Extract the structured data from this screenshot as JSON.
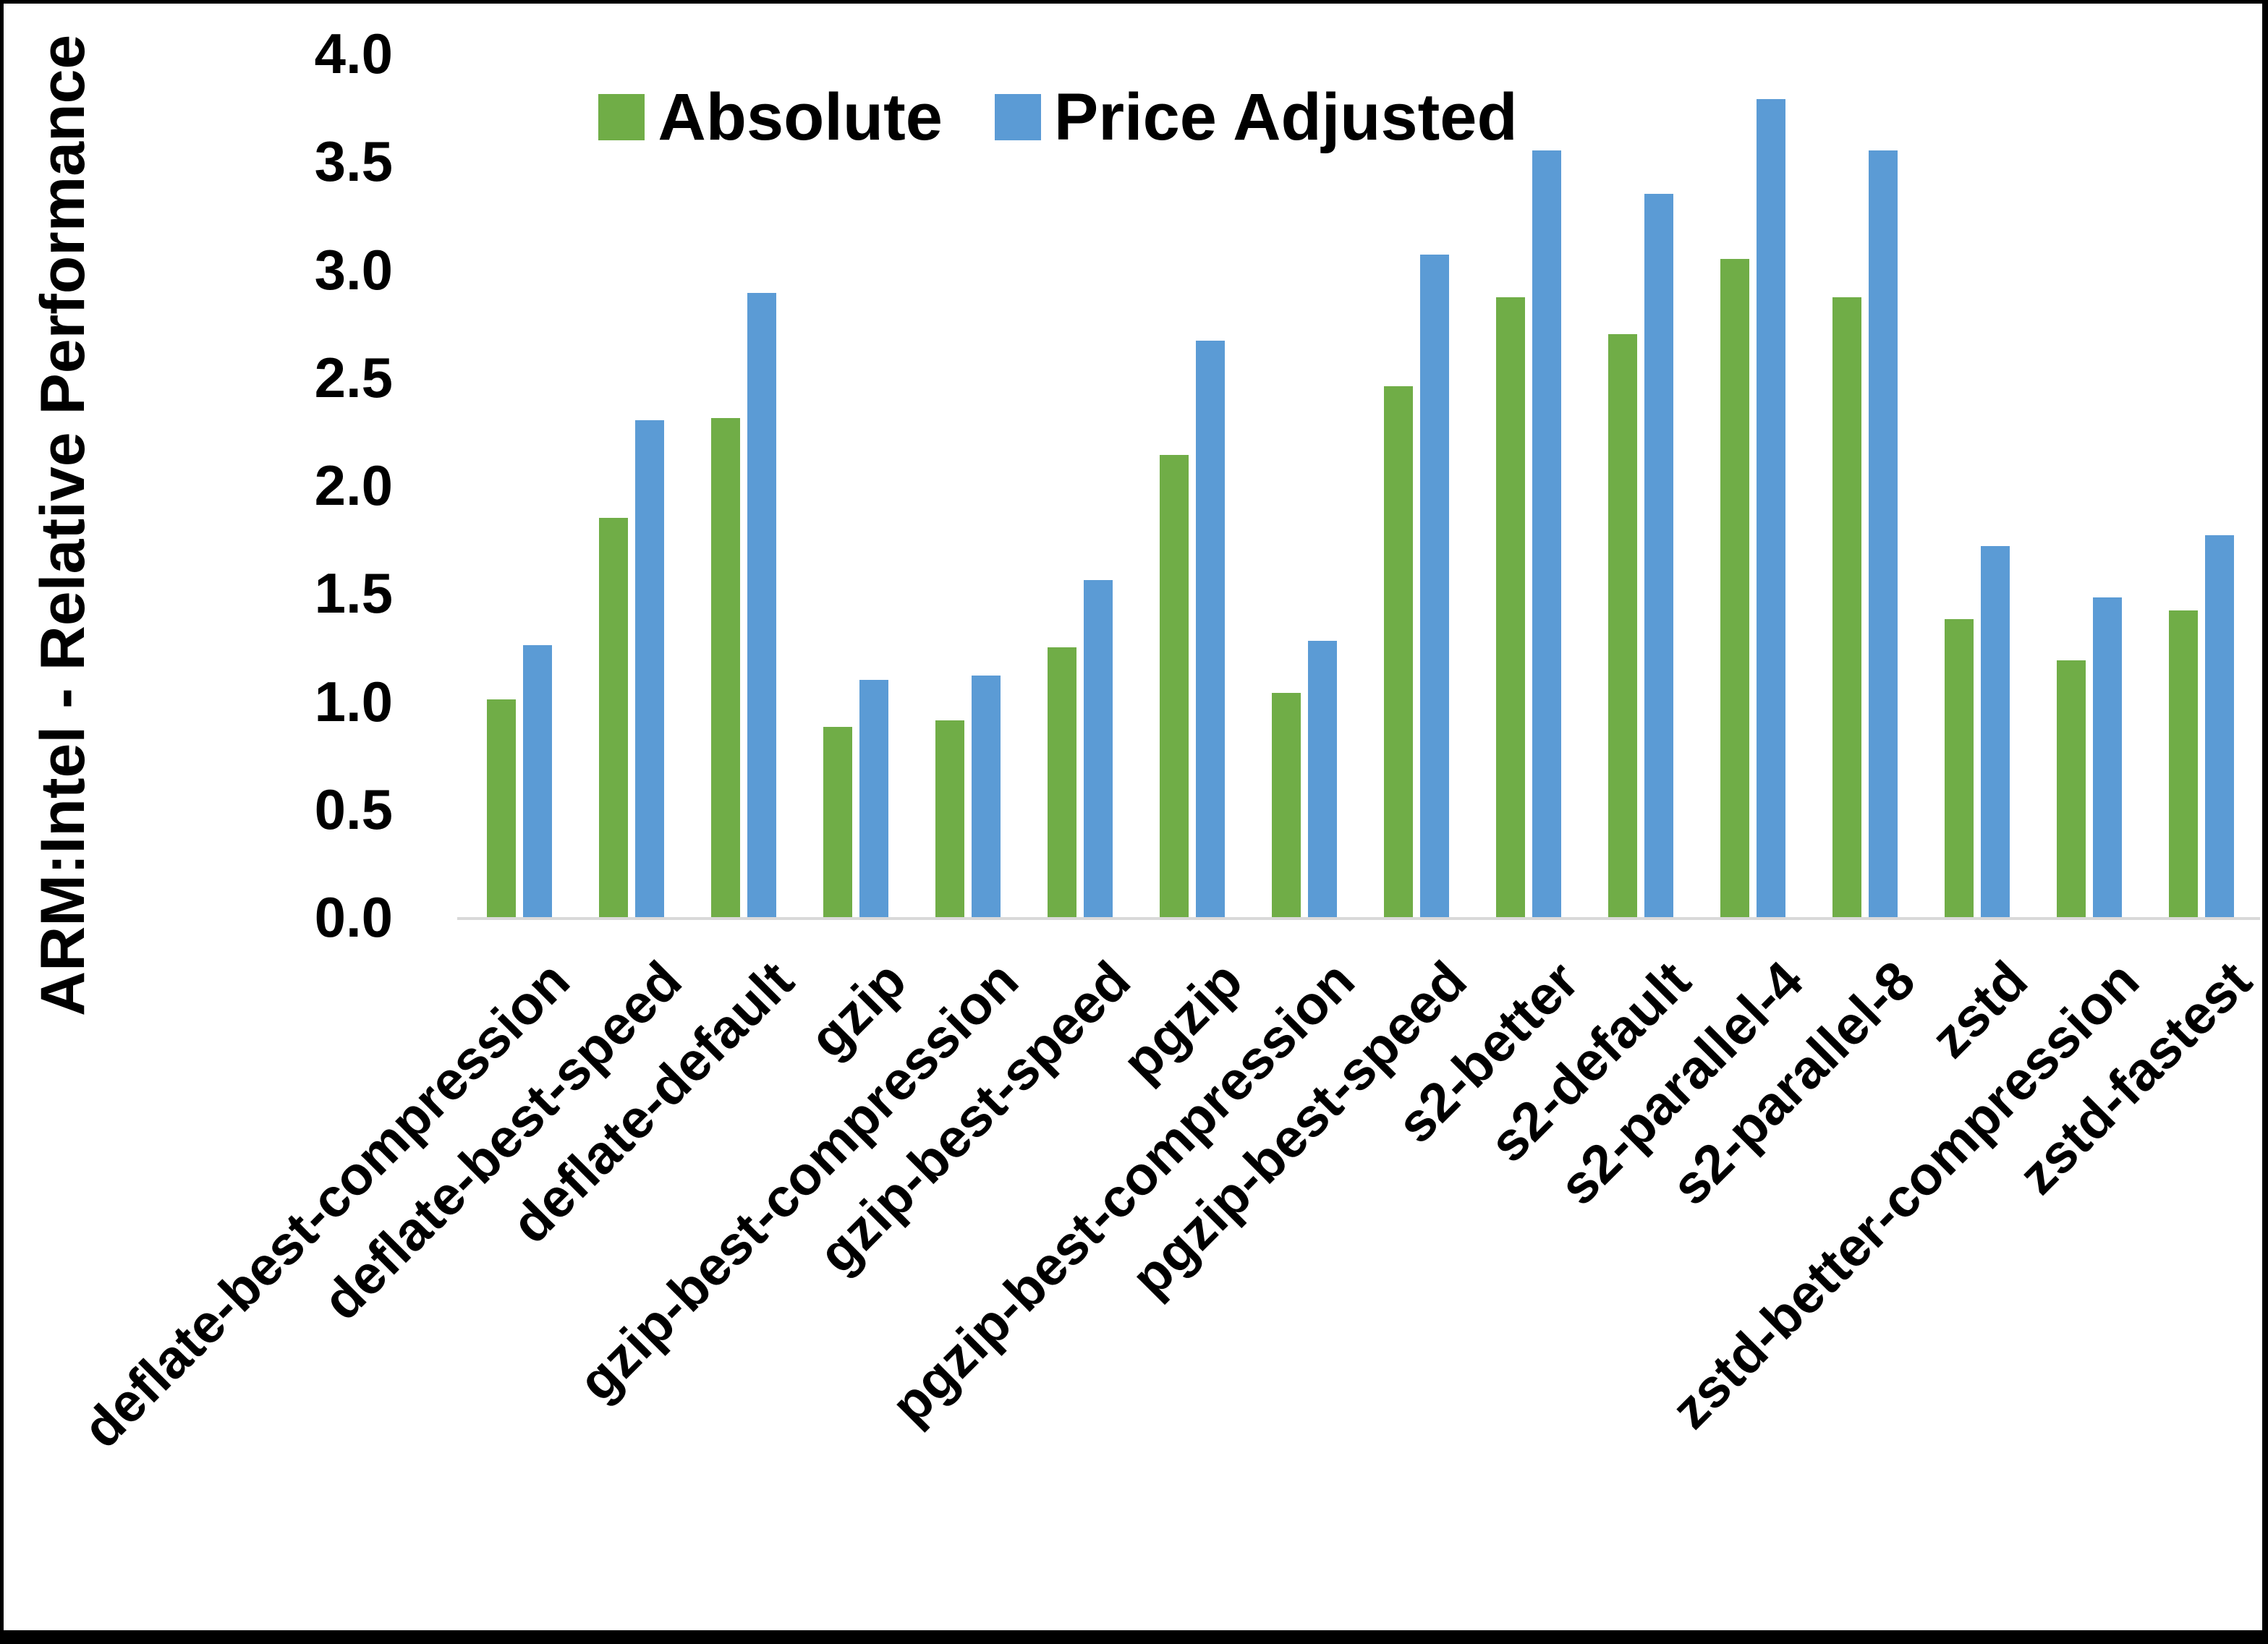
{
  "chart_data": {
    "type": "bar",
    "title": "",
    "ylabel": "ARM:Intel - Relative Performance",
    "xlabel": "",
    "ylim": [
      0.0,
      4.0
    ],
    "ytick_step": 0.5,
    "yticks": [
      "0.0",
      "0.5",
      "1.0",
      "1.5",
      "2.0",
      "2.5",
      "3.0",
      "3.5",
      "4.0"
    ],
    "grid": false,
    "legend_position": "top-center",
    "background_color": "#ffffff",
    "axis_line_color": "#d9d9d9",
    "frame_border_color": "#000000",
    "categories": [
      "deflate-best-compression",
      "deflate-best-speed",
      "deflate-default",
      "gzip",
      "gzip-best-compression",
      "gzip-best-speed",
      "pgzip",
      "pgzip-best-compression",
      "pgzip-best-speed",
      "s2-better",
      "s2-default",
      "s2-parallel-4",
      "s2-parallel-8",
      "zstd",
      "zstd-better-compression",
      "zstd-fastest"
    ],
    "series": [
      {
        "name": "Absolute",
        "color": "#70AD47",
        "values": [
          1.01,
          1.85,
          2.31,
          0.88,
          0.91,
          1.25,
          2.14,
          1.04,
          2.46,
          2.87,
          2.7,
          3.05,
          2.87,
          1.38,
          1.19,
          1.42
        ]
      },
      {
        "name": "Price Adjusted",
        "color": "#5B9BD5",
        "values": [
          1.26,
          2.3,
          2.89,
          1.1,
          1.12,
          1.56,
          2.67,
          1.28,
          3.07,
          3.55,
          3.35,
          3.79,
          3.55,
          1.72,
          1.48,
          1.77
        ]
      }
    ]
  }
}
